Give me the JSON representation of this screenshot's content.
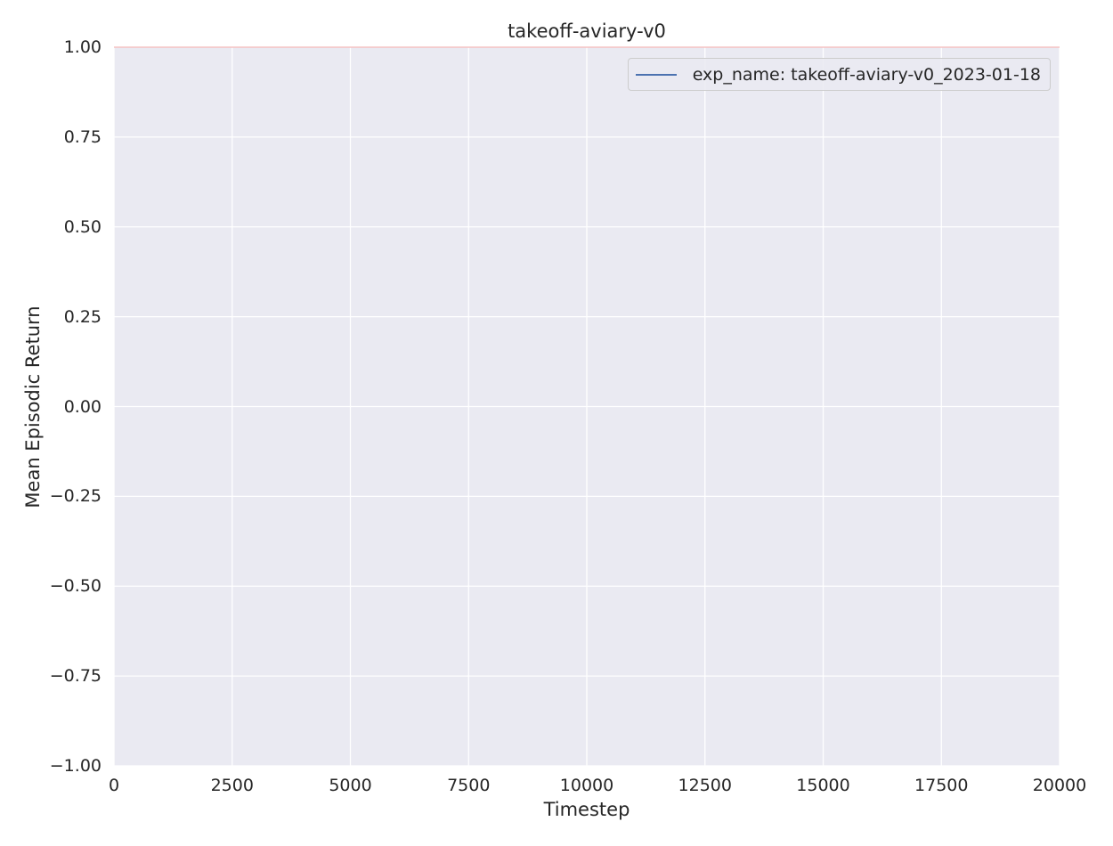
{
  "chart_data": {
    "type": "line",
    "title": "takeoff-aviary-v0",
    "xlabel": "Timestep",
    "ylabel": "Mean Episodic Return",
    "xlim": [
      0,
      20000
    ],
    "ylim": [
      -1.0,
      1.0
    ],
    "x_ticks": [
      0,
      2500,
      5000,
      7500,
      10000,
      12500,
      15000,
      17500,
      20000
    ],
    "x_tick_labels": [
      "0",
      "2500",
      "5000",
      "7500",
      "10000",
      "12500",
      "15000",
      "17500",
      "20000"
    ],
    "y_ticks": [
      -1.0,
      -0.75,
      -0.5,
      -0.25,
      0.0,
      0.25,
      0.5,
      0.75,
      1.0
    ],
    "y_tick_labels": [
      "−1.00",
      "−0.75",
      "−0.50",
      "−0.25",
      "0.00",
      "0.25",
      "0.50",
      "0.75",
      "1.00"
    ],
    "grid": true,
    "background": "#eaeaf2",
    "legend_position": "top-right",
    "reference_line": {
      "y": 1.0,
      "color": "#f4b6b6"
    },
    "series": [
      {
        "name": "exp_name: takeoff-aviary-v0_2023-01-18",
        "color": "#4c72b0",
        "x": [],
        "y": []
      }
    ]
  }
}
